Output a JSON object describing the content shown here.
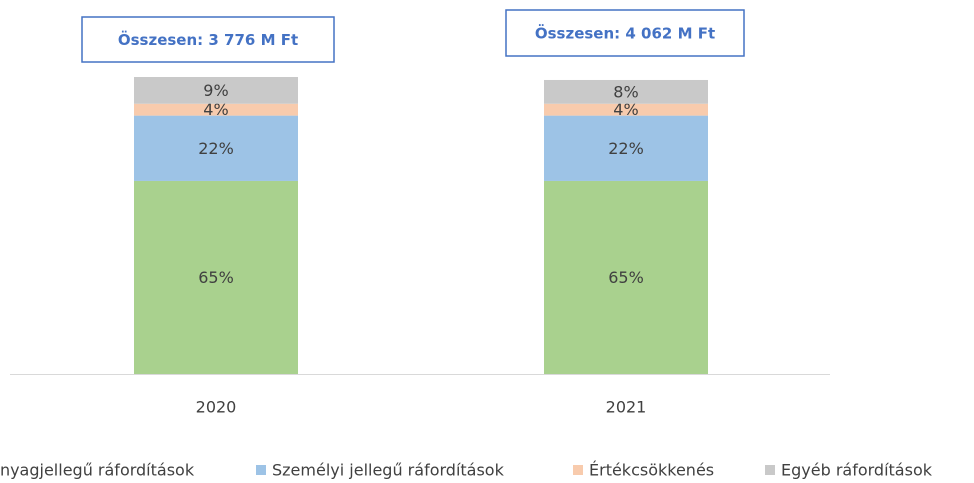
{
  "chart_data": {
    "type": "stacked_bar",
    "categories": [
      "2020",
      "2021"
    ],
    "series": [
      {
        "name": "Anyagjellegű ráfordítások",
        "color": "#a9d18e",
        "values": [
          65,
          65
        ],
        "value_labels": [
          "65%",
          "65%"
        ]
      },
      {
        "name": "Személyi jellegű ráfordítások",
        "color": "#9dc3e6",
        "values": [
          22,
          22
        ],
        "value_labels": [
          "22%",
          "22%"
        ]
      },
      {
        "name": "Értékcsökkenés",
        "color": "#f8cbad",
        "values": [
          4,
          4
        ],
        "value_labels": [
          "4%",
          "4%"
        ]
      },
      {
        "name": "Egyéb ráfordítások",
        "color": "#c9c9c9",
        "values": [
          9,
          8
        ],
        "value_labels": [
          "9%",
          "8%"
        ]
      }
    ],
    "annotations": [
      "Összesen: 3 776 M Ft",
      "Összesen: 4 062 M Ft"
    ],
    "ylim": [
      0,
      100
    ]
  }
}
